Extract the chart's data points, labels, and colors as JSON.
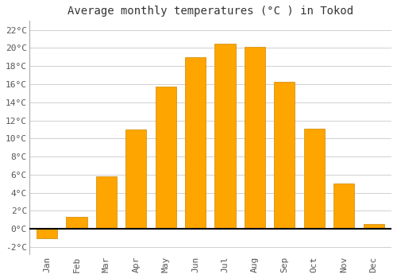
{
  "title": "Average monthly temperatures (°C ) in Tokod",
  "months": [
    "Jan",
    "Feb",
    "Mar",
    "Apr",
    "May",
    "Jun",
    "Jul",
    "Aug",
    "Sep",
    "Oct",
    "Nov",
    "Dec"
  ],
  "values": [
    -1.0,
    1.3,
    5.8,
    11.0,
    15.7,
    19.0,
    20.5,
    20.1,
    16.3,
    11.1,
    5.0,
    0.5
  ],
  "bar_color": "#FFA500",
  "bar_edge_color": "#CC8800",
  "background_color": "#ffffff",
  "grid_color": "#d0d0d0",
  "ylim": [
    -2.8,
    23.0
  ],
  "yticks": [
    -2,
    0,
    2,
    4,
    6,
    8,
    10,
    12,
    14,
    16,
    18,
    20,
    22
  ],
  "title_fontsize": 10,
  "tick_fontsize": 8,
  "font_family": "monospace",
  "bar_width": 0.7
}
